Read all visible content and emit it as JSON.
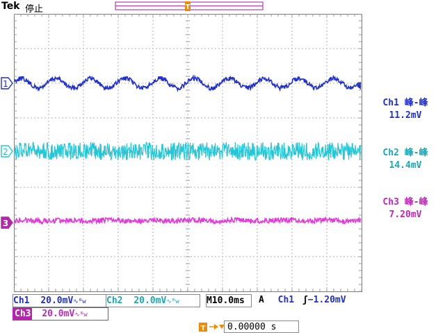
{
  "header": {
    "brand": "Tek",
    "status": "停止",
    "trigger_marker": "T"
  },
  "channels": [
    {
      "id": "1",
      "color": "#1f2fd0",
      "measurement_name": "Ch1 峰-峰",
      "measurement_value": "11.2mV"
    },
    {
      "id": "2",
      "color": "#22c8d8",
      "measurement_name": "Ch2 峰-峰",
      "measurement_value": "14.4mV"
    },
    {
      "id": "3",
      "color": "#e23ad8",
      "measurement_name": "Ch3 峰-峰",
      "measurement_value": "7.20mV"
    }
  ],
  "settings": {
    "ch1_label": "Ch1",
    "ch1_scale": "20.0mV",
    "ch2_label": "Ch2",
    "ch2_scale": "20.0mV",
    "ch3_label": "Ch3",
    "ch3_scale": "20.0mV",
    "bw_symbol": "∿ᴮw",
    "timebase_prefix": "M",
    "timebase": "10.0ms",
    "acq_mode": "A",
    "trigger_source": "Ch1",
    "trigger_slope": "ʃ",
    "trigger_level": "−1.20mV",
    "trigger_position": "0.00000 s"
  },
  "colors": {
    "grid": "#9a9a9a",
    "frame": "#7a7a7a",
    "trigger_orange": "#f08a00",
    "record_purple": "#b040b0"
  }
}
